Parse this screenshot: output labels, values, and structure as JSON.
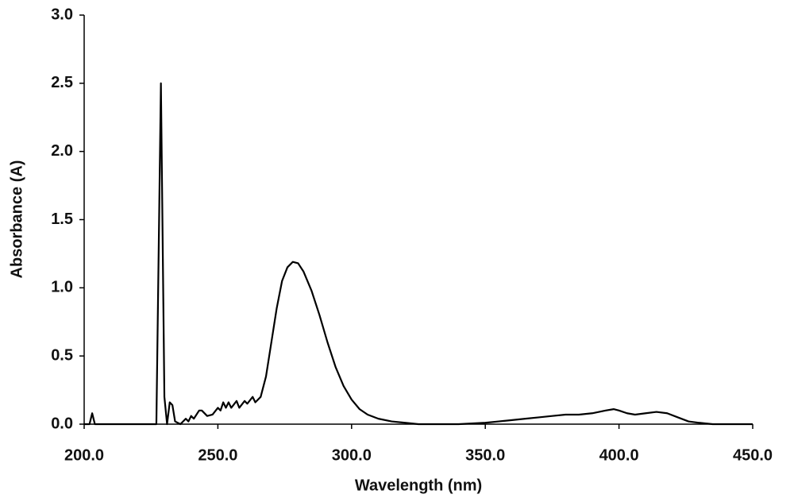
{
  "chart_data": {
    "type": "line",
    "x_label": "Wavelength (nm)",
    "y_label": "Absorbance (A)",
    "xlim": [
      200,
      450
    ],
    "ylim": [
      0,
      3
    ],
    "xticks": [
      {
        "value": 200,
        "label": "200.0"
      },
      {
        "value": 250,
        "label": "250.0"
      },
      {
        "value": 300,
        "label": "300.0"
      },
      {
        "value": 350,
        "label": "350.0"
      },
      {
        "value": 400,
        "label": "400.0"
      },
      {
        "value": 450,
        "label": "450.0"
      }
    ],
    "yticks": [
      {
        "value": 0,
        "label": "0.0"
      },
      {
        "value": 0.5,
        "label": "0.5"
      },
      {
        "value": 1,
        "label": "1.0"
      },
      {
        "value": 1.5,
        "label": "1.5"
      },
      {
        "value": 2,
        "label": "2.0"
      },
      {
        "value": 2.5,
        "label": "2.5"
      },
      {
        "value": 3,
        "label": "3.0"
      }
    ],
    "grid": false,
    "color": "#000000",
    "x": [
      200,
      202,
      203,
      204,
      227,
      228.7,
      230,
      231,
      232,
      233,
      234,
      236,
      238,
      239,
      240,
      241,
      243,
      244,
      246,
      248,
      250,
      251,
      252,
      253,
      254,
      255,
      257,
      258,
      260,
      261,
      263,
      264,
      266,
      268,
      270,
      272,
      274,
      276,
      278,
      280,
      282,
      285,
      288,
      291,
      294,
      297,
      300,
      303,
      306,
      310,
      315,
      320,
      325,
      330,
      340,
      350,
      355,
      360,
      365,
      370,
      375,
      380,
      385,
      390,
      395,
      398,
      400,
      403,
      406,
      410,
      414,
      418,
      422,
      426,
      430,
      435,
      440,
      450
    ],
    "values": [
      0,
      0,
      0.08,
      0,
      0,
      2.5,
      0.2,
      0,
      0.16,
      0.14,
      0.02,
      0,
      0.04,
      0.02,
      0.06,
      0.04,
      0.1,
      0.1,
      0.06,
      0.07,
      0.12,
      0.1,
      0.16,
      0.12,
      0.16,
      0.12,
      0.17,
      0.12,
      0.17,
      0.15,
      0.2,
      0.16,
      0.2,
      0.35,
      0.6,
      0.85,
      1.05,
      1.15,
      1.19,
      1.18,
      1.12,
      0.98,
      0.8,
      0.6,
      0.42,
      0.28,
      0.18,
      0.11,
      0.07,
      0.04,
      0.02,
      0.01,
      0,
      0,
      0,
      0.01,
      0.02,
      0.03,
      0.04,
      0.05,
      0.06,
      0.07,
      0.07,
      0.08,
      0.1,
      0.11,
      0.1,
      0.08,
      0.07,
      0.08,
      0.09,
      0.08,
      0.05,
      0.02,
      0.01,
      0,
      0,
      0
    ]
  }
}
